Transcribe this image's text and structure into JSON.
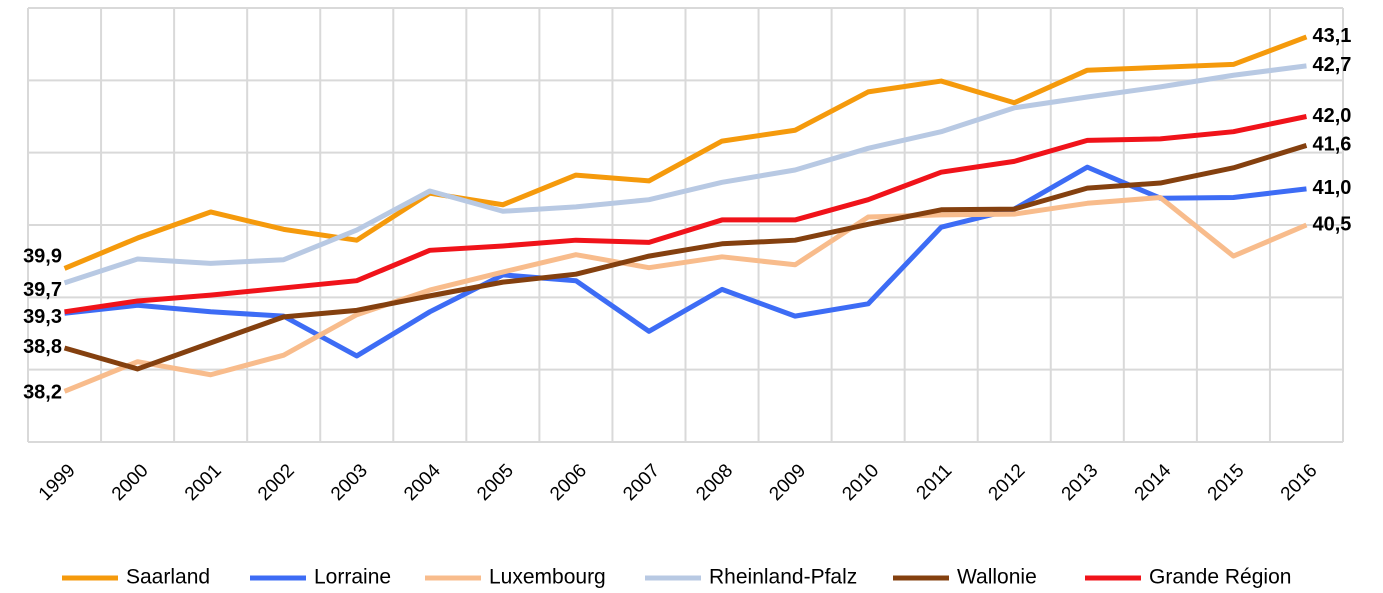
{
  "chart_data": {
    "type": "line",
    "categories": [
      "1999",
      "2000",
      "2001",
      "2002",
      "2003",
      "2004",
      "2005",
      "2006",
      "2007",
      "2008",
      "2009",
      "2010",
      "2011",
      "2012",
      "2013",
      "2014",
      "2015",
      "2016"
    ],
    "ylim": [
      37.5,
      43.5
    ],
    "yticks": [
      37.5,
      38.5,
      39.5,
      40.5,
      41.5,
      42.5,
      43.5
    ],
    "grid": true,
    "legend": "bottom",
    "series": [
      {
        "name": "Saarland",
        "color": "#f59a0c",
        "values": [
          39.9,
          40.32,
          40.68,
          40.44,
          40.29,
          40.94,
          40.78,
          41.19,
          41.11,
          41.66,
          41.81,
          42.34,
          42.49,
          42.19,
          42.64,
          42.68,
          42.72,
          43.1
        ],
        "value_labels": [
          "39,9",
          null,
          null,
          null,
          null,
          null,
          null,
          null,
          null,
          null,
          null,
          null,
          null,
          null,
          null,
          null,
          null,
          "43,1"
        ]
      },
      {
        "name": "Lorraine",
        "color": "#3d6cf5",
        "values": [
          39.28,
          39.39,
          39.3,
          39.24,
          38.69,
          39.3,
          39.81,
          39.73,
          39.03,
          39.61,
          39.24,
          39.41,
          40.47,
          40.72,
          41.3,
          40.87,
          40.88,
          41.0
        ],
        "value_labels": [
          null,
          null,
          null,
          null,
          null,
          null,
          null,
          null,
          null,
          null,
          null,
          null,
          null,
          null,
          null,
          null,
          null,
          "41,0"
        ]
      },
      {
        "name": "Luxembourg",
        "color": "#f8bc8c",
        "values": [
          38.2,
          38.61,
          38.43,
          38.7,
          39.26,
          39.6,
          39.85,
          40.09,
          39.91,
          40.06,
          39.95,
          40.61,
          40.64,
          40.65,
          40.8,
          40.88,
          40.07,
          40.5
        ],
        "value_labels": [
          "38,2",
          null,
          null,
          null,
          null,
          null,
          null,
          null,
          null,
          null,
          null,
          null,
          null,
          null,
          null,
          null,
          null,
          "40,5"
        ]
      },
      {
        "name": "Rheinland-Pfalz",
        "color": "#b8c9e3",
        "values": [
          39.7,
          40.03,
          39.97,
          40.02,
          40.43,
          40.97,
          40.69,
          40.75,
          40.85,
          41.09,
          41.26,
          41.56,
          41.79,
          42.12,
          42.27,
          42.41,
          42.57,
          42.7
        ],
        "value_labels": [
          "39,7",
          null,
          null,
          null,
          null,
          null,
          null,
          null,
          null,
          null,
          null,
          null,
          null,
          null,
          null,
          null,
          null,
          "42,7"
        ]
      },
      {
        "name": "Wallonie",
        "color": "#84400f",
        "values": [
          38.8,
          38.51,
          38.87,
          39.23,
          39.32,
          39.52,
          39.71,
          39.82,
          40.07,
          40.24,
          40.29,
          40.51,
          40.71,
          40.72,
          41.01,
          41.08,
          41.29,
          41.6
        ],
        "value_labels": [
          "38,8",
          null,
          null,
          null,
          null,
          null,
          null,
          null,
          null,
          null,
          null,
          null,
          null,
          null,
          null,
          null,
          null,
          "41,6"
        ]
      },
      {
        "name": "Grande Région",
        "color": "#f0131a",
        "values": [
          39.3,
          39.45,
          39.53,
          39.63,
          39.73,
          40.15,
          40.21,
          40.29,
          40.26,
          40.57,
          40.57,
          40.85,
          41.23,
          41.38,
          41.67,
          41.69,
          41.79,
          42.0
        ],
        "value_labels": [
          "39,3",
          null,
          null,
          null,
          null,
          null,
          null,
          null,
          null,
          null,
          null,
          null,
          null,
          null,
          null,
          null,
          null,
          "42,0"
        ]
      }
    ]
  }
}
